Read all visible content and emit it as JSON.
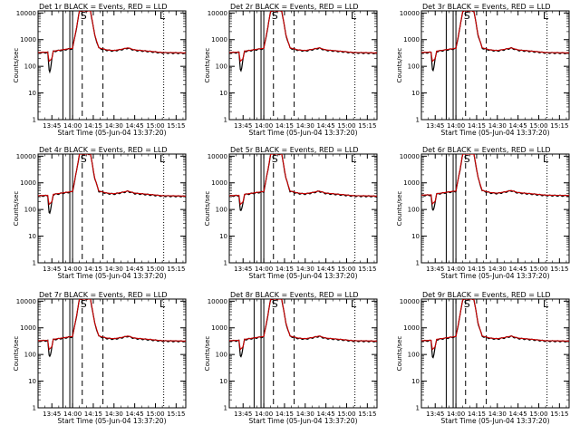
{
  "figure": {
    "background": "#ffffff",
    "axis_color": "#000000"
  },
  "colors": {
    "events": "#000000",
    "lld": "#cc0000"
  },
  "chart_data": {
    "type": "line",
    "grid": "3x3",
    "x_tick_labels": [
      "13:45",
      "14:00",
      "14:15",
      "14:30",
      "14:45",
      "15:00",
      "15:15"
    ],
    "x_range_minutes": [
      -10,
      97
    ],
    "y_scale": "log",
    "ylim": [
      1,
      12000
    ],
    "y_tick_labels": [
      "1",
      "10",
      "100",
      "1000",
      "10000"
    ],
    "y_tick_values": [
      1,
      10,
      100,
      1000,
      10000
    ],
    "ylabel": "Counts/sec",
    "xlabel": "Start Time (05-Jun-04 13:37:20)",
    "legend": "BLACK = Events, RED = LLD",
    "x_unit": "minutes after 13:45",
    "solid_markers_min": [
      8,
      13,
      15
    ],
    "dashed_markers_min": [
      22,
      37
    ],
    "dotted_markers_min": [
      81
    ],
    "annotations": [
      {
        "text": "S",
        "x_min": 23
      },
      {
        "text": "L",
        "x_min": 80
      }
    ],
    "series_shape": [
      {
        "x": -10,
        "y": 320
      },
      {
        "x": -3,
        "y": 330
      },
      {
        "x": -2,
        "y": 150
      },
      {
        "x": 0,
        "y": 190
      },
      {
        "x": 1,
        "y": 360
      },
      {
        "x": 12,
        "y": 440
      },
      {
        "x": 15,
        "y": 460
      },
      {
        "x": 18,
        "y": 3000
      },
      {
        "x": 20,
        "y": 12000
      },
      {
        "x": 28,
        "y": 12000
      },
      {
        "x": 31,
        "y": 1500
      },
      {
        "x": 34,
        "y": 480
      },
      {
        "x": 40,
        "y": 400
      },
      {
        "x": 45,
        "y": 380
      },
      {
        "x": 50,
        "y": 420
      },
      {
        "x": 55,
        "y": 480
      },
      {
        "x": 60,
        "y": 400
      },
      {
        "x": 70,
        "y": 360
      },
      {
        "x": 80,
        "y": 320
      },
      {
        "x": 97,
        "y": 310
      }
    ],
    "panels": [
      {
        "title": "Det 1r",
        "scale": 1.0,
        "dip": 0.4,
        "events_peak": 12000
      },
      {
        "title": "Det 2r",
        "scale": 1.0,
        "dip": 0.45,
        "events_peak": 12000
      },
      {
        "title": "Det 3r",
        "scale": 1.0,
        "dip": 0.45,
        "events_peak": 12000
      },
      {
        "title": "Det 4r",
        "scale": 1.0,
        "dip": 0.45,
        "events_peak": 12000
      },
      {
        "title": "Det 5r",
        "scale": 1.0,
        "dip": 0.55,
        "events_peak": 12000
      },
      {
        "title": "Det 6r",
        "scale": 1.05,
        "dip": 0.55,
        "events_peak": 12000
      },
      {
        "title": "Det 7r",
        "scale": 1.0,
        "dip": 0.55,
        "events_peak": 12000
      },
      {
        "title": "Det 8r",
        "scale": 1.0,
        "dip": 0.55,
        "events_peak": 12000
      },
      {
        "title": "Det 9r",
        "scale": 1.0,
        "dip": 0.5,
        "events_peak": 12000
      }
    ]
  }
}
